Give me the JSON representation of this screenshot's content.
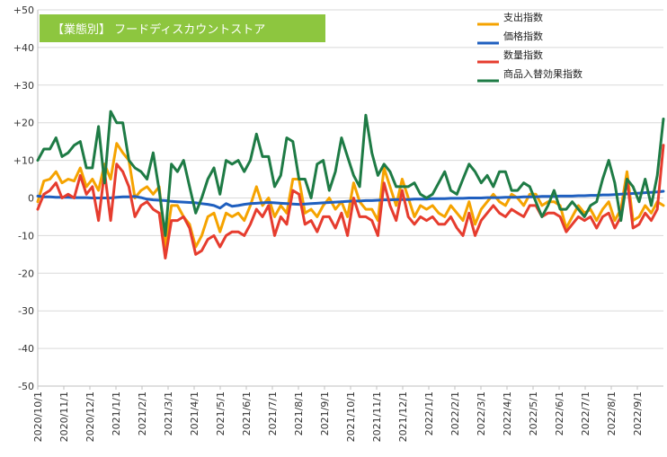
{
  "chart_data": {
    "type": "line",
    "title": "【業態別】 フードディスカウントストア",
    "title_bg": "#8dc63f",
    "ylim": [
      -50,
      50
    ],
    "yticks": [
      50,
      40,
      30,
      20,
      10,
      0,
      -10,
      -20,
      -30,
      -40,
      -50
    ],
    "ytick_labels": [
      "+50",
      "+40",
      "+30",
      "+20",
      "+10",
      "0",
      "-10",
      "-20",
      "-30",
      "-40",
      "-50"
    ],
    "x_tick_labels": [
      "2020/10/1",
      "2020/11/1",
      "2020/12/1",
      "2021/1/1",
      "2021/2/1",
      "2021/3/1",
      "2021/4/1",
      "2021/5/1",
      "2021/6/1",
      "2021/7/1",
      "2021/8/1",
      "2021/9/1",
      "2021/10/1",
      "2021/11/1",
      "2021/12/1",
      "2022/1/1",
      "2022/2/1",
      "2022/3/1",
      "2022/4/1",
      "2022/5/1",
      "2022/6/1",
      "2022/7/1",
      "2022/8/1",
      "2022/9/1"
    ],
    "n_points": 104,
    "legend_position": "top-right",
    "grid": true,
    "series": [
      {
        "name": "支出指数",
        "color": "#f5a300",
        "values": [
          -1,
          4.5,
          5,
          7,
          4,
          5,
          4.5,
          8,
          3,
          5,
          2,
          9,
          5,
          14.5,
          12,
          10,
          0,
          2,
          3,
          1,
          3,
          -13,
          -2,
          -2,
          -5,
          -7,
          -13,
          -10,
          -5,
          -4,
          -9,
          -4,
          -5,
          -4,
          -6,
          -2,
          3,
          -2,
          0,
          -5,
          -2,
          -4,
          5,
          5,
          -4,
          -3,
          -5,
          -2,
          0,
          -3,
          -1,
          -5,
          4,
          -1,
          -3,
          -3,
          -6,
          8,
          3,
          -2,
          5,
          0,
          -5,
          -2,
          -3,
          -2,
          -4,
          -5,
          -2,
          -4,
          -6,
          -1,
          -7,
          -3,
          -1,
          1,
          -1,
          -2,
          1,
          0,
          -2,
          1,
          1,
          -2,
          -1,
          -1,
          -2,
          -8,
          -5,
          -2,
          -4,
          -3,
          -6,
          -3,
          -1,
          -6,
          -3,
          7,
          -6,
          -5,
          -2,
          -4,
          -1,
          -2
        ]
      },
      {
        "name": "価格指数",
        "color": "#1f5fbf",
        "values": [
          0.5,
          0.3,
          0.3,
          0.2,
          0.2,
          0.2,
          0.1,
          0.1,
          0.1,
          0,
          0,
          0,
          0,
          0.2,
          0.3,
          0.3,
          0.4,
          0.1,
          -0.3,
          -0.5,
          -0.6,
          -0.7,
          -0.9,
          -1,
          -1.1,
          -1.2,
          -1.3,
          -1.5,
          -1.7,
          -2,
          -2.7,
          -1.5,
          -2.2,
          -2,
          -1.7,
          -1.5,
          -1.4,
          -1.3,
          -1.2,
          -1.3,
          -1.4,
          -1.5,
          -1.6,
          -1.7,
          -1.6,
          -1.5,
          -1.4,
          -1.3,
          -1.2,
          -1.1,
          -1,
          -0.9,
          -0.8,
          -0.8,
          -0.7,
          -0.7,
          -0.6,
          -0.5,
          -0.5,
          -0.4,
          -0.4,
          -0.4,
          -0.3,
          -0.3,
          -0.3,
          -0.2,
          -0.2,
          -0.2,
          -0.1,
          -0.1,
          -0.1,
          0,
          0,
          0,
          0.1,
          0.1,
          0.1,
          0.2,
          0.2,
          0.2,
          0.3,
          0.3,
          0.3,
          0.4,
          0.4,
          0.4,
          0.5,
          0.5,
          0.5,
          0.6,
          0.6,
          0.7,
          0.7,
          0.8,
          0.8,
          0.9,
          1,
          1.1,
          1.2,
          1.3,
          1.4,
          1.5,
          1.6,
          1.8
        ]
      },
      {
        "name": "数量指数",
        "color": "#e63c2e",
        "values": [
          -3,
          1,
          2,
          4,
          0,
          1,
          0,
          6,
          1,
          3,
          -6,
          7,
          -6,
          9,
          7,
          3,
          -5,
          -2,
          -1,
          -3,
          -4,
          -16,
          -6,
          -6,
          -5,
          -8,
          -15,
          -14,
          -11,
          -10,
          -13,
          -10,
          -9,
          -9,
          -10,
          -7,
          -3,
          -5,
          -2,
          -10,
          -5,
          -7,
          2,
          1,
          -7,
          -6,
          -9,
          -5,
          -5,
          -8,
          -4,
          -10,
          0,
          -5,
          -5,
          -6,
          -10,
          4,
          -2,
          -6,
          2,
          -5,
          -7,
          -5,
          -6,
          -5,
          -7,
          -7,
          -5,
          -8,
          -10,
          -4,
          -10,
          -6,
          -4,
          -2,
          -4,
          -5,
          -3,
          -4,
          -5,
          -2,
          -2,
          -5,
          -4,
          -4,
          -5,
          -9,
          -7,
          -5,
          -6,
          -5,
          -8,
          -5,
          -4,
          -8,
          -5,
          5,
          -8,
          -7,
          -4,
          -6,
          -3,
          14
        ]
      },
      {
        "name": "商品入替効果指数",
        "color": "#1e7b45",
        "values": [
          10,
          13,
          13,
          16,
          11,
          12,
          14,
          15,
          8,
          8,
          19,
          4,
          23,
          20,
          20,
          10,
          8,
          7,
          5,
          12,
          2,
          -10,
          9,
          7,
          10,
          3,
          -4,
          0,
          5,
          8,
          1,
          10,
          9,
          10,
          7,
          10,
          17,
          11,
          11,
          3,
          6,
          16,
          15,
          5,
          5,
          0,
          9,
          10,
          2,
          7,
          16,
          11,
          6,
          3,
          22,
          12,
          6,
          9,
          7,
          3,
          3,
          3,
          4,
          1,
          0,
          1,
          4,
          7,
          2,
          1,
          5,
          9,
          7,
          4,
          6,
          3,
          7,
          7,
          2,
          2,
          4,
          3,
          -1,
          -5,
          -2,
          2,
          -3,
          -3,
          -1,
          -3,
          -5,
          -2,
          -1,
          5,
          10,
          4,
          -6,
          5,
          3,
          -1,
          5,
          -2,
          6,
          21
        ]
      }
    ]
  }
}
